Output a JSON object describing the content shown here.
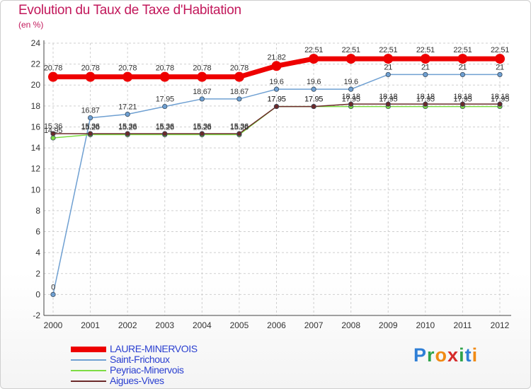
{
  "chart_data": {
    "type": "line",
    "title": "Evolution du Taux de Taxe d'Habitation",
    "subtitle": "(en %)",
    "xlabel": "",
    "ylabel": "(en %)",
    "ylim": [
      -2,
      24
    ],
    "yticks": [
      "-2",
      "0",
      "2",
      "4",
      "6",
      "8",
      "10",
      "12",
      "14",
      "16",
      "18",
      "20",
      "22",
      "24"
    ],
    "categories": [
      "2000",
      "2001",
      "2002",
      "2003",
      "2004",
      "2005",
      "2006",
      "2007",
      "2008",
      "2009",
      "2010",
      "2011",
      "2012"
    ],
    "grid": true,
    "legend_position": "bottom-left",
    "series": [
      {
        "name": "LAURE-MINERVOIS",
        "color": "#ee0000",
        "values": [
          20.78,
          20.78,
          20.78,
          20.78,
          20.78,
          20.78,
          21.82,
          22.51,
          22.51,
          22.51,
          22.51,
          22.51,
          22.51
        ],
        "labels": [
          "20.78",
          "20.78",
          "20.78",
          "20.78",
          "20.78",
          "20.78",
          "21.82",
          "22.51",
          "22.51",
          "22.51",
          "22.51",
          "22.51",
          "22.51"
        ]
      },
      {
        "name": "Saint-Frichoux",
        "color": "#6fa0d2",
        "values": [
          0,
          16.87,
          17.21,
          17.95,
          18.67,
          18.67,
          19.6,
          19.6,
          19.6,
          21,
          21,
          21,
          21
        ],
        "labels": [
          "0",
          "16.87",
          "17.21",
          "17.95",
          "18.67",
          "18.67",
          "19.6",
          "19.6",
          "19.6",
          "21",
          "21",
          "21",
          "21"
        ]
      },
      {
        "name": "Peyriac-Minervois",
        "color": "#7ddc43",
        "values": [
          14.95,
          15.26,
          15.26,
          15.26,
          15.26,
          15.26,
          17.95,
          17.95,
          17.95,
          17.95,
          17.95,
          17.95,
          17.95
        ],
        "labels": [
          "14.95",
          "15.26",
          "15.26",
          "15.26",
          "15.26",
          "15.26",
          "17.95",
          "17.95",
          "17.95",
          "17.95",
          "17.95",
          "17.95",
          "17.95"
        ]
      },
      {
        "name": "Aigues-Vives",
        "color": "#6b2a2a",
        "values": [
          15.36,
          15.36,
          15.36,
          15.36,
          15.36,
          15.36,
          17.95,
          17.95,
          18.18,
          18.18,
          18.18,
          18.18,
          18.18
        ],
        "labels": [
          "15.36",
          "15.36",
          "15.36",
          "15.36",
          "15.36",
          "15.36",
          "17.95",
          "17.95",
          "18.18",
          "18.18",
          "18.18",
          "18.18",
          "18.18"
        ]
      }
    ]
  },
  "logo": {
    "letters": [
      "P",
      "r",
      "o",
      "x",
      "i",
      "t",
      "i"
    ],
    "colors": [
      "#2f7fd6",
      "#2fa34a",
      "#f08a14",
      "#d62b2b",
      "#2fa34a",
      "#2f7fd6",
      "#f08a14"
    ]
  }
}
